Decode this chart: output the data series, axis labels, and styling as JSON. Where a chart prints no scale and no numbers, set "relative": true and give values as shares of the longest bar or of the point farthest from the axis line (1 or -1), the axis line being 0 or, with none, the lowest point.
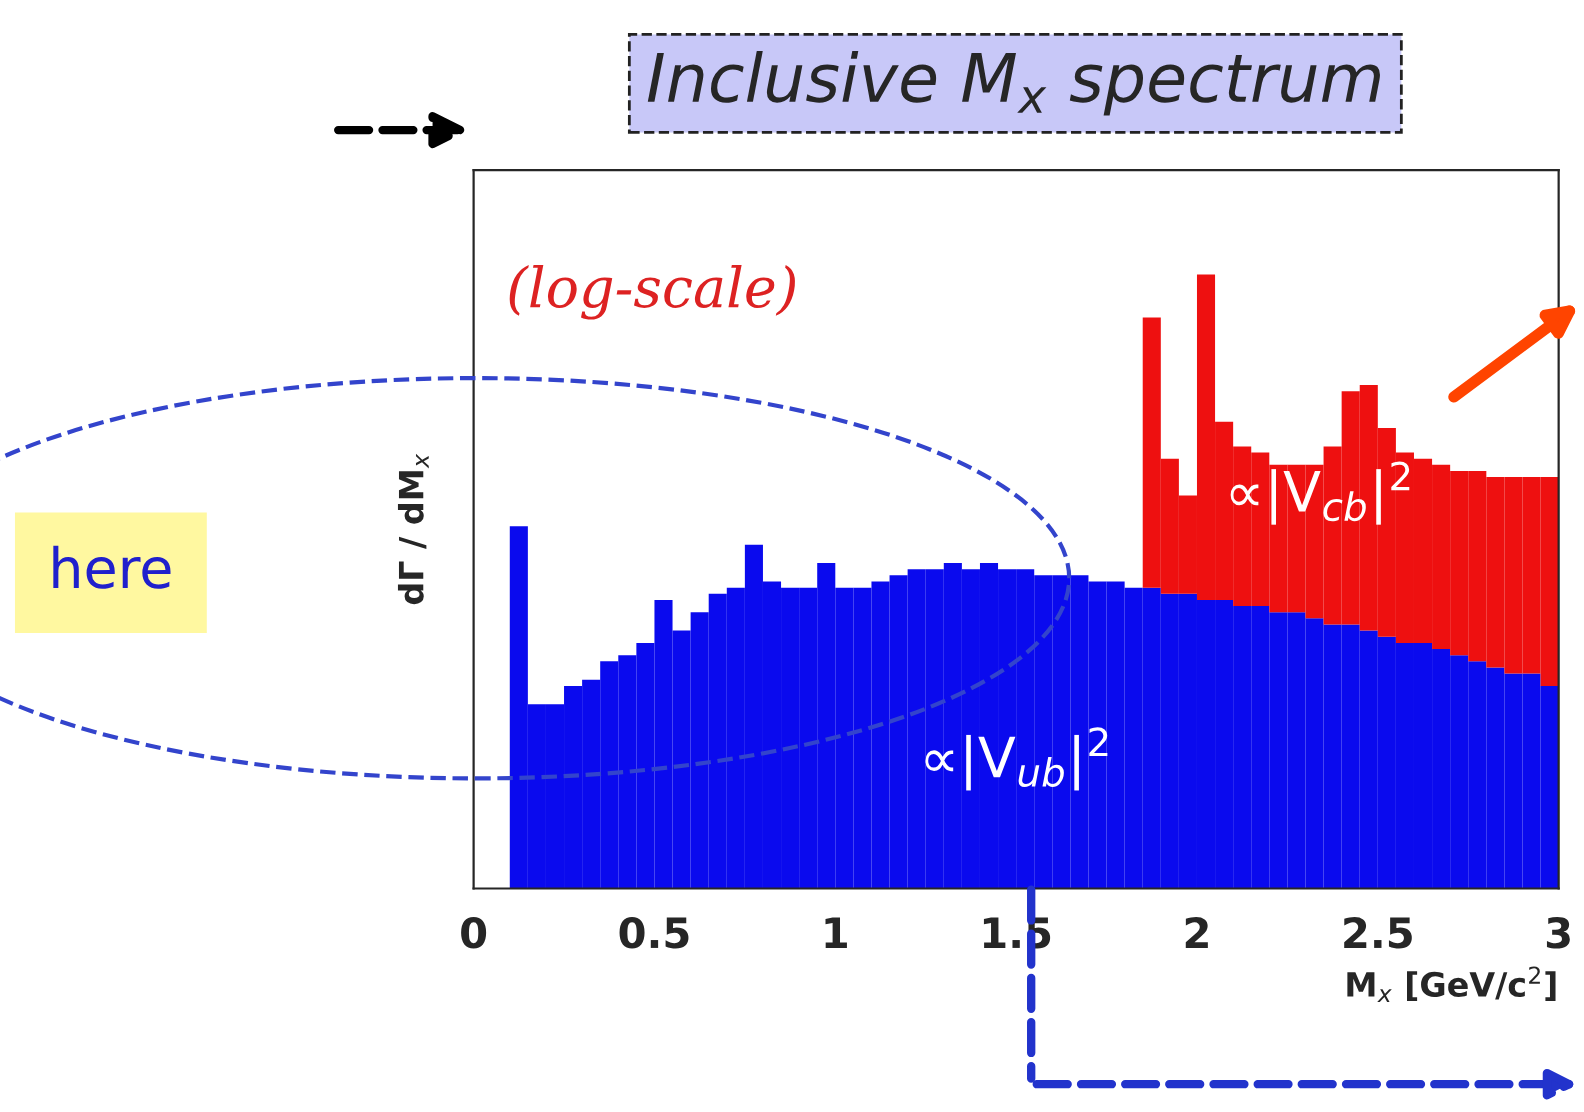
{
  "chart_data": {
    "type": "bar",
    "title": "Inclusive M$_{x}$ spectrum",
    "xlabel": "M$_{x}$ [GeV/c$^{2}$]",
    "ylabel": "dΓ / dM$_{x}$",
    "relative": true,
    "stacked": true,
    "xlim": [
      0,
      3
    ],
    "xticks": [
      0,
      0.5,
      1,
      1.5,
      2,
      2.5,
      3
    ],
    "x": [
      0.125,
      0.175,
      0.225,
      0.275,
      0.325,
      0.375,
      0.425,
      0.475,
      0.525,
      0.575,
      0.625,
      0.675,
      0.725,
      0.775,
      0.825,
      0.875,
      0.925,
      0.975,
      1.025,
      1.075,
      1.125,
      1.175,
      1.225,
      1.275,
      1.325,
      1.375,
      1.425,
      1.475,
      1.525,
      1.575,
      1.625,
      1.675,
      1.725,
      1.775,
      1.825,
      1.875,
      1.925,
      1.975,
      2.025,
      2.075,
      2.125,
      2.175,
      2.225,
      2.275,
      2.325,
      2.375,
      2.425,
      2.475,
      2.525,
      2.575,
      2.625,
      2.675,
      2.725,
      2.775,
      2.825,
      2.875,
      2.925,
      2.975
    ],
    "series": [
      {
        "name": "∝|V$_{ub}$|$^{2}$",
        "color": "#0a0aee",
        "values": [
          0.59,
          0.3,
          0.3,
          0.33,
          0.34,
          0.37,
          0.38,
          0.4,
          0.47,
          0.42,
          0.45,
          0.48,
          0.49,
          0.56,
          0.5,
          0.49,
          0.49,
          0.53,
          0.49,
          0.49,
          0.5,
          0.51,
          0.52,
          0.52,
          0.53,
          0.52,
          0.53,
          0.52,
          0.52,
          0.51,
          0.51,
          0.51,
          0.5,
          0.5,
          0.49,
          0.49,
          0.48,
          0.48,
          0.47,
          0.47,
          0.46,
          0.46,
          0.45,
          0.45,
          0.44,
          0.43,
          0.43,
          0.42,
          0.41,
          0.4,
          0.4,
          0.39,
          0.38,
          0.37,
          0.36,
          0.35,
          0.35,
          0.33
        ]
      },
      {
        "name": "∝|V$_{cb}$|$^{2}$",
        "color": "#ee1010",
        "values": [
          null,
          null,
          null,
          null,
          null,
          null,
          null,
          null,
          null,
          null,
          null,
          null,
          null,
          null,
          null,
          null,
          null,
          null,
          null,
          null,
          null,
          null,
          null,
          null,
          null,
          null,
          null,
          null,
          null,
          null,
          null,
          null,
          null,
          null,
          null,
          0.44,
          0.22,
          0.16,
          0.53,
          0.29,
          0.26,
          0.25,
          0.24,
          0.24,
          0.25,
          0.29,
          0.38,
          0.4,
          0.34,
          0.31,
          0.3,
          0.3,
          0.3,
          0.31,
          0.31,
          0.32,
          0.32,
          0.34
        ]
      }
    ],
    "annotations": [
      "(log-scale)",
      "here"
    ]
  }
}
